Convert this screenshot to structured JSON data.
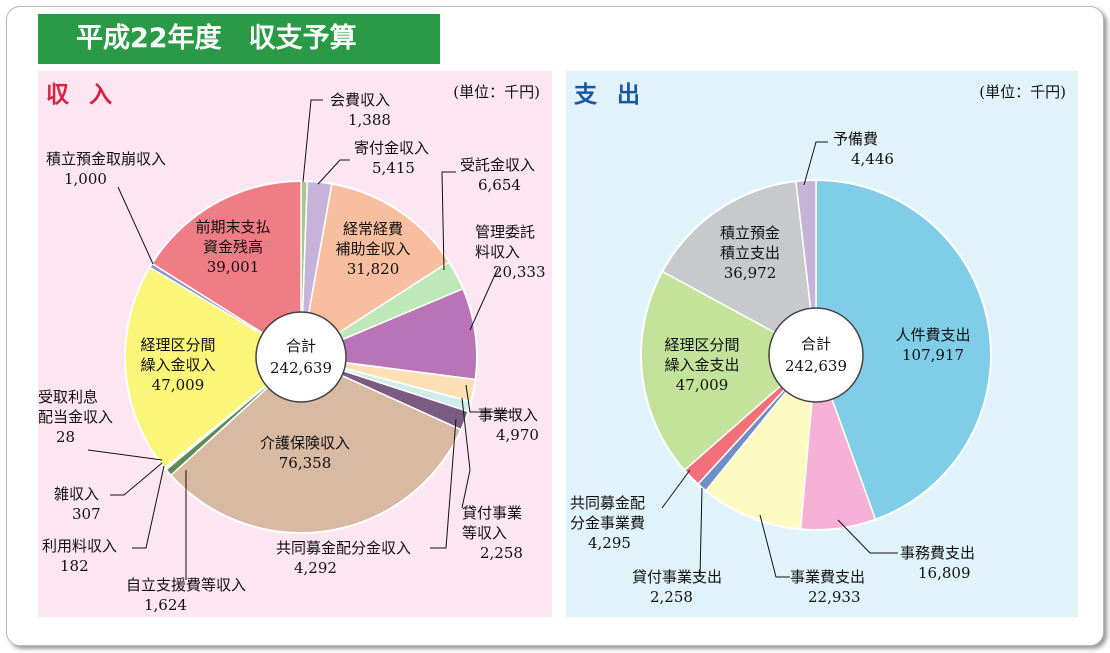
{
  "title": "平成22年度　収支予算",
  "unit": "(単位：千円)",
  "total_label": "合計",
  "total_value": "242,639",
  "chart_data": [
    {
      "type": "pie",
      "title": "収入",
      "total": 242639,
      "slices": [
        {
          "name": "会費収入",
          "value": 1388,
          "display": "1,388",
          "color": "#a9c78c"
        },
        {
          "name": "寄付金収入",
          "value": 5415,
          "display": "5,415",
          "color": "#c6b3da"
        },
        {
          "name": "経常経費補助金収入",
          "value": 31820,
          "display": "31,820",
          "color": "#f7bf9f"
        },
        {
          "name": "受託金収入",
          "value": 6654,
          "display": "6,654",
          "color": "#bfe8b8"
        },
        {
          "name": "管理委託料収入",
          "value": 20333,
          "display": "20,333",
          "color": "#b874b6"
        },
        {
          "name": "事業収入",
          "value": 4970,
          "display": "4,970",
          "color": "#fde0b6"
        },
        {
          "name": "貸付事業等収入",
          "value": 2258,
          "display": "2,258",
          "color": "#cfeee9"
        },
        {
          "name": "共同募金配分金収入",
          "value": 4292,
          "display": "4,292",
          "color": "#7a5c83"
        },
        {
          "name": "介護保険収入",
          "value": 76358,
          "display": "76,358",
          "color": "#d8b9a2"
        },
        {
          "name": "自立支援費等収入",
          "value": 1624,
          "display": "1,624",
          "color": "#5f8c56"
        },
        {
          "name": "利用料収入",
          "value": 182,
          "display": "182",
          "color": "#5f8c56"
        },
        {
          "name": "雑収入",
          "value": 307,
          "display": "307",
          "color": "#cccccc"
        },
        {
          "name": "受取利息配当金収入",
          "value": 28,
          "display": "28",
          "color": "#7a5c83"
        },
        {
          "name": "経理区分間繰入金収入",
          "value": 47009,
          "display": "47,009",
          "color": "#fbf57a"
        },
        {
          "name": "積立預金取崩収入",
          "value": 1000,
          "display": "1,000",
          "color": "#8c98c6"
        },
        {
          "name": "前期末支払資金残高",
          "value": 39001,
          "display": "39,001",
          "color": "#f07c86"
        }
      ]
    },
    {
      "type": "pie",
      "title": "支出",
      "total": 242639,
      "slices": [
        {
          "name": "人件費支出",
          "value": 107917,
          "display": "107,917",
          "color": "#7fcde6"
        },
        {
          "name": "事務費支出",
          "value": 16809,
          "display": "16,809",
          "color": "#f5b2d6"
        },
        {
          "name": "事業費支出",
          "value": 22933,
          "display": "22,933",
          "color": "#fdfac2"
        },
        {
          "name": "貸付事業支出",
          "value": 2258,
          "display": "2,258",
          "color": "#6f8fc5"
        },
        {
          "name": "共同募金配分金事業費",
          "value": 4295,
          "display": "4,295",
          "color": "#f3707b"
        },
        {
          "name": "経理区分間繰入金支出",
          "value": 47009,
          "display": "47,009",
          "color": "#c4e39a"
        },
        {
          "name": "積立預金積立支出",
          "value": 36972,
          "display": "36,972",
          "color": "#c7c9cc"
        },
        {
          "name": "予備費",
          "value": 4446,
          "display": "4,446",
          "color": "#c6b3da"
        }
      ]
    }
  ]
}
